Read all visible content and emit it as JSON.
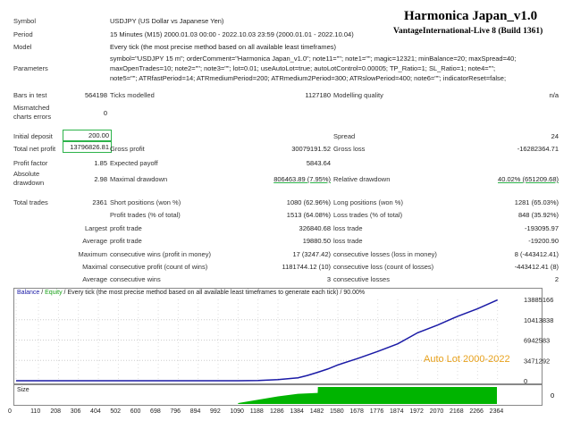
{
  "header": {
    "title": "Harmonica Japan_v1.0",
    "subtitle": "VantageInternational-Live 8 (Build 1361)"
  },
  "report": {
    "symbol_label": "Symbol",
    "symbol_value": "USDJPY (US Dollar vs Japanese Yen)",
    "period_label": "Period",
    "period_value": "15 Minutes (M15) 2000.01.03 00:00 - 2022.10.03 23:59 (2000.01.01 - 2022.10.04)",
    "model_label": "Model",
    "model_value": "Every tick (the most precise method based on all available least timeframes)",
    "parameters_label": "Parameters",
    "parameters_lines": [
      "symbol=\"USDJPY 15 m\"; orderComment=\"Harmonica Japan_v1.0\"; note11=\"\"; note1=\"\"; magic=12321; minBalance=20; maxSpread=40;",
      "maxOpenTrades=10; note2=\"\"; note3=\"\"; lot=0.01; useAutoLot=true; autoLotControl=0.00005; TP_Ratio=1; SL_Ratio=1; note4=\"\";",
      "note5=\"\"; ATRfastPeriod=14; ATRmediumPeriod=200; ATRmedium2Period=300; ATRslowPeriod=400; note6=\"\"; indicatorReset=false;"
    ],
    "bars_label": "Bars in test",
    "bars_value": "564198",
    "ticks_label": "Ticks modelled",
    "ticks_value": "1127180",
    "quality_label": "Modelling quality",
    "quality_value": "n/a",
    "mismatched_label": "Mismatched charts errors",
    "mismatched_value": "0",
    "initial_label": "Initial deposit",
    "initial_value": "200.00",
    "spread_label": "Spread",
    "spread_value": "24",
    "net_label": "Total net profit",
    "net_value": "13796826.81",
    "gross_profit_label": "Gross profit",
    "gross_profit_value": "30079191.52",
    "gross_loss_label": "Gross loss",
    "gross_loss_value": "-16282364.71",
    "pf_label": "Profit factor",
    "pf_value": "1.85",
    "payoff_label": "Expected payoff",
    "payoff_value": "5843.64",
    "abs_dd_label": "Absolute drawdown",
    "abs_dd_value": "2.98",
    "max_dd_label": "Maximal drawdown",
    "max_dd_value": "806463.89 (7.95%)",
    "rel_dd_label": "Relative drawdown",
    "rel_dd_value": "40.02% (651209.68)",
    "total_trades_label": "Total trades",
    "total_trades_value": "2361",
    "short_label": "Short positions (won %)",
    "short_value": "1080 (62.96%)",
    "long_label": "Long positions (won %)",
    "long_value": "1281 (65.03%)",
    "profit_trades_label": "Profit trades (% of total)",
    "profit_trades_value": "1513 (64.08%)",
    "loss_trades_label": "Loss trades (% of total)",
    "loss_trades_value": "848 (35.92%)",
    "largest_label": "Largest",
    "largest_profit_label": "profit trade",
    "largest_profit_value": "326840.68",
    "largest_loss_label": "loss trade",
    "largest_loss_value": "-193095.97",
    "average_label": "Average",
    "avg_profit_label": "profit trade",
    "avg_profit_value": "19880.50",
    "avg_loss_label": "loss trade",
    "avg_loss_value": "-19200.90",
    "maximum_label": "Maximum",
    "max_cons_wins_label": "consecutive wins (profit in money)",
    "max_cons_wins_value": "17 (3247.42)",
    "max_cons_losses_label": "consecutive losses (loss in money)",
    "max_cons_losses_value": "8 (-443412.41)",
    "maximal_label": "Maximal",
    "maxl_cons_profit_label": "consecutive profit (count of wins)",
    "maxl_cons_profit_value": "1181744.12 (10)",
    "maxl_cons_loss_label": "consecutive loss (count of losses)",
    "maxl_cons_loss_value": "-443412.41 (8)",
    "avg2_label": "Average",
    "avg_cons_wins_label": "consecutive wins",
    "avg_cons_wins_value": "3",
    "avg_cons_losses_label": "consecutive losses",
    "avg_cons_losses_value": "2"
  },
  "chart": {
    "legend_balance": "Balance",
    "legend_sep": " / ",
    "legend_equity": "Equity",
    "legend_rest": " / Every tick (the most precise method based on all available least timeframes to generate each tick) / 90.00%",
    "annotation": "Auto Lot 2000-2022",
    "size_label": "Size",
    "balance_color": "#1a1aa6",
    "equity_color": "#18a018",
    "volume_color": "#00b400",
    "annotation_color": "#e8a21e"
  },
  "chart_data": {
    "type": "line",
    "series": [
      {
        "name": "Balance",
        "x": [
          0,
          110,
          208,
          306,
          404,
          502,
          600,
          698,
          796,
          894,
          992,
          1090,
          1188,
          1286,
          1384,
          1430,
          1482,
          1530,
          1580,
          1678,
          1776,
          1874,
          1972,
          2070,
          2168,
          2266,
          2364
        ],
        "y": [
          200,
          200,
          200,
          200,
          200,
          200,
          200,
          200,
          200,
          300,
          800,
          5000,
          30000,
          200000,
          500000,
          900000,
          1450000,
          2000000,
          2700000,
          3800000,
          5000000,
          6300000,
          8200000,
          9500000,
          11000000,
          12300000,
          13796826
        ]
      }
    ],
    "x_ticks": [
      "0",
      "110",
      "208",
      "306",
      "404",
      "502",
      "600",
      "698",
      "796",
      "894",
      "992",
      "1090",
      "1188",
      "1286",
      "1384",
      "1482",
      "1580",
      "1678",
      "1776",
      "1874",
      "1972",
      "2070",
      "2168",
      "2266",
      "2364"
    ],
    "y_ticks": [
      "13885166",
      "10413838",
      "6942583",
      "3471292",
      "0"
    ],
    "ylim": [
      0,
      13885166
    ],
    "xlim": [
      0,
      2361
    ],
    "volume_x": [
      1090,
      1188,
      1286,
      1384,
      1481,
      1482,
      2361
    ],
    "volume_y": [
      0.05,
      0.25,
      0.45,
      0.6,
      0.65,
      1.0,
      1.0
    ]
  }
}
